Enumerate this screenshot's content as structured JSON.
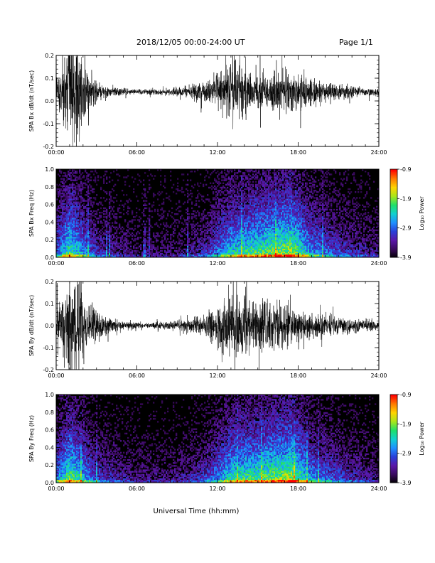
{
  "header": {
    "title": "2018/12/05  00:00-24:00 UT",
    "page": "Page 1/1"
  },
  "xlabel": "Universal Time (hh:mm)",
  "colors": {
    "trace": "#000000",
    "spectrogram_scale": [
      "#000000",
      "#3a0a5e",
      "#5a17a8",
      "#2a3fd8",
      "#1f8fff",
      "#12d0d0",
      "#1fe06a",
      "#a8e61a",
      "#ffd400",
      "#ff7a00",
      "#ff0000"
    ]
  },
  "colorbar": {
    "label": "Log₁₀ Power",
    "ticks": [
      "-0.9",
      "-1.9",
      "-2.9",
      "-3.9"
    ],
    "range": [
      -3.9,
      -0.9
    ]
  },
  "chart_data": [
    {
      "type": "line",
      "title": "",
      "ylabel": "SPA Bx dB/dt (nT/sec)",
      "xlabel": "",
      "xlim": [
        "00:00",
        "24:00"
      ],
      "x_tick_labels": [
        "00:00",
        "06:00",
        "12:00",
        "18:00",
        "24:00"
      ],
      "ylim": [
        -0.2,
        0.2
      ],
      "y_tick_labels": [
        "0.2",
        "0.1",
        "0.0",
        "-0.1",
        "-0.2"
      ],
      "offset": 0.04,
      "envelope": [
        {
          "x": 0.0,
          "amp": 0.07
        },
        {
          "x": 0.5,
          "amp": 0.12
        },
        {
          "x": 1.0,
          "amp": 0.28
        },
        {
          "x": 1.6,
          "amp": 0.26
        },
        {
          "x": 2.2,
          "amp": 0.1
        },
        {
          "x": 3.0,
          "amp": 0.05
        },
        {
          "x": 4.0,
          "amp": 0.025
        },
        {
          "x": 6.0,
          "amp": 0.012
        },
        {
          "x": 8.0,
          "amp": 0.015
        },
        {
          "x": 10.0,
          "amp": 0.03
        },
        {
          "x": 11.5,
          "amp": 0.06
        },
        {
          "x": 12.0,
          "amp": 0.1
        },
        {
          "x": 13.0,
          "amp": 0.13
        },
        {
          "x": 13.5,
          "amp": 0.18
        },
        {
          "x": 14.5,
          "amp": 0.08
        },
        {
          "x": 15.5,
          "amp": 0.07
        },
        {
          "x": 16.5,
          "amp": 0.08
        },
        {
          "x": 17.5,
          "amp": 0.09
        },
        {
          "x": 18.5,
          "amp": 0.07
        },
        {
          "x": 20.0,
          "amp": 0.05
        },
        {
          "x": 22.0,
          "amp": 0.03
        },
        {
          "x": 24.0,
          "amp": 0.015
        }
      ]
    },
    {
      "type": "heatmap",
      "title": "",
      "ylabel": "SPA Bx Freq (Hz)",
      "xlabel": "",
      "xlim": [
        "00:00",
        "24:00"
      ],
      "x_tick_labels": [
        "00:00",
        "06:00",
        "12:00",
        "18:00",
        "24:00"
      ],
      "ylim": [
        0.0,
        1.0
      ],
      "y_tick_labels": [
        "1.0",
        "0.8",
        "0.6",
        "0.4",
        "0.2",
        "0.0"
      ],
      "value_range": [
        -3.9,
        -0.9
      ],
      "activity": [
        {
          "x": 0.0,
          "level": 0.45
        },
        {
          "x": 1.0,
          "level": 0.75
        },
        {
          "x": 2.0,
          "level": 0.55
        },
        {
          "x": 3.0,
          "level": 0.35
        },
        {
          "x": 6.0,
          "level": 0.18
        },
        {
          "x": 9.0,
          "level": 0.2
        },
        {
          "x": 11.0,
          "level": 0.32
        },
        {
          "x": 13.0,
          "level": 0.65
        },
        {
          "x": 15.0,
          "level": 0.75
        },
        {
          "x": 17.5,
          "level": 0.85
        },
        {
          "x": 19.0,
          "level": 0.55
        },
        {
          "x": 21.0,
          "level": 0.38
        },
        {
          "x": 24.0,
          "level": 0.22
        }
      ]
    },
    {
      "type": "line",
      "title": "",
      "ylabel": "SPA By dB/dt (nT/sec)",
      "xlabel": "",
      "xlim": [
        "00:00",
        "24:00"
      ],
      "x_tick_labels": [
        "00:00",
        "06:00",
        "12:00",
        "18:00",
        "24:00"
      ],
      "ylim": [
        -0.2,
        0.2
      ],
      "y_tick_labels": [
        "0.2",
        "0.1",
        "0.0",
        "-0.1",
        "-0.2"
      ],
      "offset": 0.0,
      "envelope": [
        {
          "x": 0.0,
          "amp": 0.08
        },
        {
          "x": 0.5,
          "amp": 0.15
        },
        {
          "x": 1.0,
          "amp": 0.26
        },
        {
          "x": 1.8,
          "amp": 0.24
        },
        {
          "x": 2.5,
          "amp": 0.1
        },
        {
          "x": 3.5,
          "amp": 0.05
        },
        {
          "x": 5.0,
          "amp": 0.02
        },
        {
          "x": 7.0,
          "amp": 0.012
        },
        {
          "x": 9.0,
          "amp": 0.025
        },
        {
          "x": 11.0,
          "amp": 0.05
        },
        {
          "x": 12.0,
          "amp": 0.09
        },
        {
          "x": 13.0,
          "amp": 0.14
        },
        {
          "x": 13.5,
          "amp": 0.2
        },
        {
          "x": 14.5,
          "amp": 0.12
        },
        {
          "x": 15.5,
          "amp": 0.14
        },
        {
          "x": 16.5,
          "amp": 0.12
        },
        {
          "x": 17.5,
          "amp": 0.09
        },
        {
          "x": 19.0,
          "amp": 0.06
        },
        {
          "x": 21.0,
          "amp": 0.04
        },
        {
          "x": 24.0,
          "amp": 0.025
        }
      ]
    },
    {
      "type": "heatmap",
      "title": "",
      "ylabel": "SPA By Freq (Hz)",
      "xlabel": "",
      "xlim": [
        "00:00",
        "24:00"
      ],
      "x_tick_labels": [
        "00:00",
        "06:00",
        "12:00",
        "18:00",
        "24:00"
      ],
      "ylim": [
        0.0,
        1.0
      ],
      "y_tick_labels": [
        "1.0",
        "0.8",
        "0.6",
        "0.4",
        "0.2",
        "0.0"
      ],
      "value_range": [
        -3.9,
        -0.9
      ],
      "activity": [
        {
          "x": 0.0,
          "level": 0.5
        },
        {
          "x": 1.0,
          "level": 0.78
        },
        {
          "x": 2.0,
          "level": 0.6
        },
        {
          "x": 3.0,
          "level": 0.38
        },
        {
          "x": 6.0,
          "level": 0.2
        },
        {
          "x": 9.0,
          "level": 0.22
        },
        {
          "x": 11.0,
          "level": 0.35
        },
        {
          "x": 13.0,
          "level": 0.68
        },
        {
          "x": 15.0,
          "level": 0.75
        },
        {
          "x": 17.5,
          "level": 0.85
        },
        {
          "x": 19.0,
          "level": 0.55
        },
        {
          "x": 21.0,
          "level": 0.38
        },
        {
          "x": 24.0,
          "level": 0.22
        }
      ]
    }
  ]
}
